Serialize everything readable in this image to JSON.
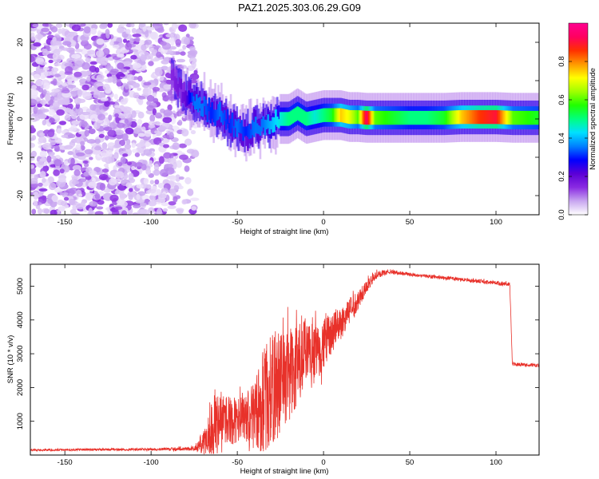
{
  "title": "PAZ1.2025.303.06.29.G09",
  "colors": {
    "snr_line": "#e8312a",
    "frame": "#000000",
    "background": "#ffffff"
  },
  "chart_data": [
    {
      "type": "heatmap",
      "name": "spectrogram",
      "xlabel": "Height of straight line (km)",
      "ylabel": "Frequency (Hz)",
      "xlim": [
        -170,
        125
      ],
      "ylim": [
        -25,
        25
      ],
      "xticks": [
        -150,
        -100,
        -50,
        0,
        50,
        100
      ],
      "yticks": [
        -20,
        -10,
        0,
        10,
        20
      ],
      "noise_region_x": [
        -170,
        -78
      ],
      "signal_track": [
        {
          "x": -88,
          "y": 11,
          "v": 0.15
        },
        {
          "x": -80,
          "y": 6,
          "v": 0.2
        },
        {
          "x": -75,
          "y": 5,
          "v": 0.35
        },
        {
          "x": -70,
          "y": 3.5,
          "v": 0.35
        },
        {
          "x": -65,
          "y": 2,
          "v": 0.3
        },
        {
          "x": -60,
          "y": 1,
          "v": 0.35
        },
        {
          "x": -55,
          "y": -1,
          "v": 0.3
        },
        {
          "x": -50,
          "y": -3,
          "v": 0.35
        },
        {
          "x": -45,
          "y": -4,
          "v": 0.3
        },
        {
          "x": -40,
          "y": -2,
          "v": 0.35
        },
        {
          "x": -35,
          "y": -1.5,
          "v": 0.35
        },
        {
          "x": -30,
          "y": -1.5,
          "v": 0.4
        },
        {
          "x": -25,
          "y": 0,
          "v": 0.45
        },
        {
          "x": -20,
          "y": 0,
          "v": 0.5
        },
        {
          "x": -15,
          "y": 1.5,
          "v": 0.5
        },
        {
          "x": -10,
          "y": 0,
          "v": 0.5
        },
        {
          "x": -5,
          "y": 0.5,
          "v": 0.45
        },
        {
          "x": 0,
          "y": 1,
          "v": 0.5
        },
        {
          "x": 5,
          "y": 1,
          "v": 0.55
        },
        {
          "x": 10,
          "y": 1,
          "v": 0.75
        },
        {
          "x": 15,
          "y": 0.5,
          "v": 0.7
        },
        {
          "x": 20,
          "y": 0.5,
          "v": 0.6
        },
        {
          "x": 25,
          "y": 0.3,
          "v": 0.95
        },
        {
          "x": 30,
          "y": 0.3,
          "v": 0.6
        },
        {
          "x": 40,
          "y": 0.3,
          "v": 0.55
        },
        {
          "x": 50,
          "y": 0.3,
          "v": 0.5
        },
        {
          "x": 60,
          "y": 0.3,
          "v": 0.5
        },
        {
          "x": 70,
          "y": 0.3,
          "v": 0.55
        },
        {
          "x": 80,
          "y": 0.5,
          "v": 0.75
        },
        {
          "x": 90,
          "y": 0.5,
          "v": 0.85
        },
        {
          "x": 100,
          "y": 0.5,
          "v": 0.9
        },
        {
          "x": 110,
          "y": 0.3,
          "v": 0.6
        },
        {
          "x": 125,
          "y": 0.3,
          "v": 0.55
        }
      ]
    },
    {
      "type": "colorbar",
      "name": "colorbar",
      "label": "Normalized spectral amplitude",
      "range": [
        0.0,
        1.0
      ],
      "ticks": [
        "0.0",
        "0.2",
        "0.4",
        "0.6",
        "0.8"
      ],
      "colormap": [
        "#ffffff",
        "#c8a6f0",
        "#8a2be2",
        "#5b00d6",
        "#0000ff",
        "#0080ff",
        "#00e0ff",
        "#00ff80",
        "#20ff00",
        "#a0ff00",
        "#ffff00",
        "#ff9900",
        "#ff3000",
        "#ff0060",
        "#ff0090"
      ]
    },
    {
      "type": "line",
      "name": "snr",
      "xlabel": "Height of straight line (km)",
      "ylabel": "SNR (10 * v/v)",
      "xlim": [
        -170,
        125
      ],
      "ylim": [
        0,
        5650
      ],
      "xticks": [
        -150,
        -100,
        -50,
        0,
        50,
        100
      ],
      "yticks": [
        1000,
        2000,
        3000,
        4000,
        5000
      ],
      "envelope": {
        "x": [
          -170,
          -100,
          -75,
          -70,
          -65,
          -60,
          -55,
          -50,
          -45,
          -40,
          -35,
          -30,
          -25,
          -20,
          -15,
          -10,
          -5,
          0,
          5,
          10,
          15,
          20,
          25,
          30,
          35,
          40,
          50,
          60,
          70,
          80,
          90,
          100,
          108,
          109.5,
          115,
          125
        ],
        "mean": [
          150,
          170,
          190,
          300,
          800,
          1100,
          1050,
          1000,
          1050,
          1200,
          1600,
          1900,
          2200,
          2400,
          2600,
          2900,
          3000,
          3300,
          3600,
          3900,
          4250,
          4600,
          5000,
          5300,
          5400,
          5420,
          5350,
          5300,
          5250,
          5200,
          5150,
          5100,
          5050,
          2700,
          2680,
          2650
        ],
        "amp": [
          30,
          35,
          60,
          300,
          900,
          800,
          700,
          700,
          800,
          1000,
          1600,
          1700,
          1600,
          1500,
          1300,
          1100,
          900,
          750,
          600,
          500,
          400,
          300,
          200,
          120,
          80,
          60,
          50,
          50,
          50,
          50,
          50,
          60,
          60,
          50,
          50,
          50
        ]
      }
    }
  ]
}
